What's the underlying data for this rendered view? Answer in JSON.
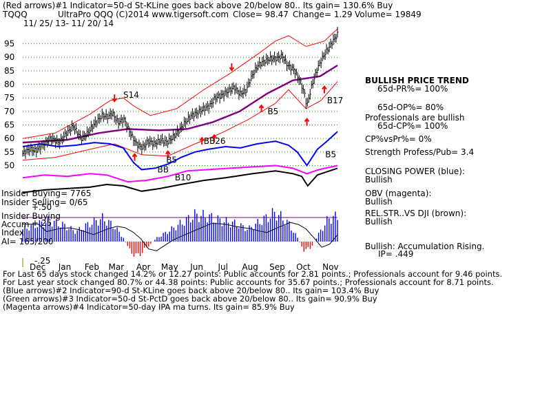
{
  "header": {
    "line1": "(Red arrows)#1 Indicator=50-d St-KLine goes back above 20/below 80.. Its gain= 130.6% Buy",
    "symbol": "TQQQ",
    "title": "UltraPro QQQ  (C)2014 www.tigersoft.com",
    "close_label": "Close=  98.47",
    "change_label": "Change= 1.29",
    "volume_label": "Volume= 19849",
    "date_range": "11/ 25/ 13- 11/ 20/ 14"
  },
  "right_panel": {
    "trend_title": "BULLISH PRICE TREND",
    "pr": "65d-PR%= 100%",
    "op": "65d-OP%= 80%",
    "pros": "Professionals are bullish",
    "cp": "65d-CP%= 100%",
    "cpvspr": "CP%vsPr%=  0%",
    "strength": "Strength Profess/Pub= 3.4",
    "closing_power_title": "CLOSING POWER (blue):",
    "closing_power_value": "Bullish",
    "obv_title": "OBV (magenta):",
    "obv_value": "Bullish",
    "relstr_title": "REL.STR..VS DJI (brown):",
    "relstr_value": "Bullish",
    "accum_title": "Bullish: Accumulation Rising.",
    "ip": "IP=  .449"
  },
  "left_labels": {
    "insider_buying": "Insider Buying= 7765",
    "insider_selling": "Insider Selling= 0/65",
    "insider_buying2": "Insider Buying",
    "accum": "Accum",
    "index": "Index",
    "ai": "AI= 165/200",
    "p50": "+.50",
    "p25": "+.25",
    "m25": "-.25"
  },
  "annotations": [
    {
      "text": "S14",
      "x": "2014-03-20",
      "y": 75
    },
    {
      "text": "B17",
      "x": "2014-11-08",
      "y": 73
    },
    {
      "text": "B5",
      "x": "2014-09-01",
      "y": 69
    },
    {
      "text": "BB26",
      "x": "2014-06-20",
      "y": 58
    },
    {
      "text": "B5",
      "x": "2014-11-06",
      "y": 53
    },
    {
      "text": "B5",
      "x": "2014-05-08",
      "y": 51
    },
    {
      "text": "BB",
      "x": "2014-04-28",
      "y": 47.5
    },
    {
      "text": "B10",
      "x": "2014-05-18",
      "y": 44.5
    }
  ],
  "footer": {
    "line1": "For Last 65 days stock changed  14.2% or  12.27 points:  Public accounts for  2.81 points.;  Professionals account for  9.46 points.",
    "line2": "For Last year stock changed  80.7% or  44.38 points:  Public accounts for  35.67 points.;  Professionals account for  8.71 points.",
    "line3": "(Blue arrows)#2 Indicator=90-d St-KLine goes back above 20/below 80.. Its gain= 103.4% Buy",
    "line4": "(Green arrows)#3 Indicator=50-d St-PctD goes back above 20/below 80.. Its gain= 90.9% Buy",
    "line5": "(Magenta arrows)#4 Indicator=50-day IPA ma turns. Its gain= 85.9% Buy"
  },
  "colors": {
    "price": "#000000",
    "bands": "#ff0000",
    "ma": "#800080",
    "closing_power": "#0000ff",
    "obv": "#ff00ff",
    "relstr": "#000000",
    "accum_pos": "#0000ff",
    "accum_neg": "#ff0000",
    "grid": "#00aa00",
    "arrow_red": "#ff0000"
  },
  "chart_data": {
    "type": "line",
    "title": "UltraPro QQQ",
    "y_ticks": [
      50,
      55,
      60,
      65,
      70,
      75,
      80,
      85,
      90,
      95
    ],
    "ylim": [
      43,
      101
    ],
    "xlim": [
      "2013-11-25",
      "2014-11-20"
    ],
    "month_labels": [
      {
        "label": "Dec",
        "date": "2013-12-01"
      },
      {
        "label": "Jan",
        "date": "2014-01-01"
      },
      {
        "label": "Feb",
        "date": "2014-02-01"
      },
      {
        "label": "Mar",
        "date": "2014-03-01"
      },
      {
        "label": "Apr",
        "date": "2014-04-01"
      },
      {
        "label": "May",
        "date": "2014-05-01"
      },
      {
        "label": "Jun",
        "date": "2014-06-01"
      },
      {
        "label": "Jul",
        "date": "2014-07-01"
      },
      {
        "label": "Aug",
        "date": "2014-08-01"
      },
      {
        "label": "Sep",
        "date": "2014-09-01"
      },
      {
        "label": "Oct",
        "date": "2014-10-01"
      },
      {
        "label": "Nov",
        "date": "2014-11-01"
      }
    ],
    "price": [
      [
        "2013-11-25",
        54.5
      ],
      [
        "2013-12-03",
        56
      ],
      [
        "2013-12-10",
        55.5
      ],
      [
        "2013-12-18",
        57.5
      ],
      [
        "2013-12-27",
        60
      ],
      [
        "2014-01-06",
        58.5
      ],
      [
        "2014-01-14",
        62
      ],
      [
        "2014-01-22",
        64.5
      ],
      [
        "2014-01-31",
        60
      ],
      [
        "2014-02-06",
        61.5
      ],
      [
        "2014-02-14",
        65
      ],
      [
        "2014-02-24",
        68.5
      ],
      [
        "2014-03-03",
        68
      ],
      [
        "2014-03-07",
        69.5
      ],
      [
        "2014-03-14",
        66
      ],
      [
        "2014-03-21",
        67
      ],
      [
        "2014-03-28",
        62
      ],
      [
        "2014-04-04",
        58
      ],
      [
        "2014-04-11",
        56.5
      ],
      [
        "2014-04-18",
        59
      ],
      [
        "2014-04-25",
        58
      ],
      [
        "2014-05-02",
        59.5
      ],
      [
        "2014-05-09",
        58.5
      ],
      [
        "2014-05-16",
        60.5
      ],
      [
        "2014-05-23",
        63
      ],
      [
        "2014-05-30",
        66
      ],
      [
        "2014-06-06",
        68.5
      ],
      [
        "2014-06-13",
        69.5
      ],
      [
        "2014-06-20",
        71
      ],
      [
        "2014-06-27",
        72
      ],
      [
        "2014-07-03",
        75
      ],
      [
        "2014-07-11",
        76
      ],
      [
        "2014-07-18",
        77.5
      ],
      [
        "2014-07-25",
        79
      ],
      [
        "2014-07-31",
        76.5
      ],
      [
        "2014-08-07",
        77.5
      ],
      [
        "2014-08-14",
        83
      ],
      [
        "2014-08-21",
        87
      ],
      [
        "2014-08-28",
        88.5
      ],
      [
        "2014-09-04",
        89.5
      ],
      [
        "2014-09-11",
        89.5
      ],
      [
        "2014-09-18",
        90.5
      ],
      [
        "2014-09-24",
        87
      ],
      [
        "2014-10-01",
        85.5
      ],
      [
        "2014-10-07",
        82
      ],
      [
        "2014-10-13",
        77
      ],
      [
        "2014-10-16",
        72
      ],
      [
        "2014-10-22",
        80
      ],
      [
        "2014-10-29",
        86.5
      ],
      [
        "2014-11-04",
        90.5
      ],
      [
        "2014-11-10",
        93.5
      ],
      [
        "2014-11-15",
        96
      ],
      [
        "2014-11-20",
        98.5
      ]
    ],
    "upper_band": [
      [
        "2013-11-25",
        60
      ],
      [
        "2014-01-01",
        62
      ],
      [
        "2014-02-10",
        69
      ],
      [
        "2014-03-05",
        74
      ],
      [
        "2014-03-20",
        75
      ],
      [
        "2014-04-01",
        72
      ],
      [
        "2014-04-20",
        68.5
      ],
      [
        "2014-05-20",
        71
      ],
      [
        "2014-06-20",
        78
      ],
      [
        "2014-07-20",
        84
      ],
      [
        "2014-08-20",
        91
      ],
      [
        "2014-09-10",
        96
      ],
      [
        "2014-09-25",
        98
      ],
      [
        "2014-10-15",
        94
      ],
      [
        "2014-11-05",
        96
      ],
      [
        "2014-11-20",
        100.5
      ]
    ],
    "lower_band": [
      [
        "2013-11-25",
        52
      ],
      [
        "2014-01-01",
        53
      ],
      [
        "2014-02-10",
        56
      ],
      [
        "2014-03-10",
        58
      ],
      [
        "2014-04-10",
        54
      ],
      [
        "2014-05-10",
        53.5
      ],
      [
        "2014-06-10",
        58
      ],
      [
        "2014-07-10",
        62
      ],
      [
        "2014-08-10",
        67
      ],
      [
        "2014-09-10",
        73
      ],
      [
        "2014-09-25",
        78
      ],
      [
        "2014-10-15",
        71
      ],
      [
        "2014-11-01",
        74
      ],
      [
        "2014-11-20",
        81
      ]
    ],
    "ma": [
      [
        "2013-11-25",
        58.5
      ],
      [
        "2014-01-15",
        59.5
      ],
      [
        "2014-02-20",
        62
      ],
      [
        "2014-03-25",
        63.5
      ],
      [
        "2014-04-30",
        63
      ],
      [
        "2014-06-01",
        63.5
      ],
      [
        "2014-06-30",
        66
      ],
      [
        "2014-07-31",
        70
      ],
      [
        "2014-08-31",
        76.5
      ],
      [
        "2014-09-30",
        81.5
      ],
      [
        "2014-10-31",
        83
      ],
      [
        "2014-11-20",
        87
      ]
    ],
    "closing_power": [
      [
        "2013-11-25",
        57
      ],
      [
        "2013-12-15",
        58
      ],
      [
        "2014-01-05",
        57
      ],
      [
        "2014-01-25",
        57.5
      ],
      [
        "2014-02-15",
        58.5
      ],
      [
        "2014-03-05",
        58
      ],
      [
        "2014-03-20",
        56.5
      ],
      [
        "2014-04-01",
        51
      ],
      [
        "2014-04-10",
        48.5
      ],
      [
        "2014-04-25",
        49
      ],
      [
        "2014-05-10",
        50.5
      ],
      [
        "2014-05-25",
        53
      ],
      [
        "2014-06-10",
        55
      ],
      [
        "2014-06-25",
        56
      ],
      [
        "2014-07-15",
        57
      ],
      [
        "2014-08-01",
        56.5
      ],
      [
        "2014-08-20",
        58
      ],
      [
        "2014-09-10",
        59
      ],
      [
        "2014-09-25",
        57.5
      ],
      [
        "2014-10-05",
        55
      ],
      [
        "2014-10-16",
        50
      ],
      [
        "2014-10-28",
        56
      ],
      [
        "2014-11-08",
        59
      ],
      [
        "2014-11-20",
        62.5
      ]
    ],
    "obv": [
      [
        "2013-11-25",
        45.5
      ],
      [
        "2013-12-20",
        46.5
      ],
      [
        "2014-01-15",
        46
      ],
      [
        "2014-02-10",
        47
      ],
      [
        "2014-03-01",
        46.5
      ],
      [
        "2014-03-25",
        44
      ],
      [
        "2014-04-15",
        44.5
      ],
      [
        "2014-05-10",
        46
      ],
      [
        "2014-06-01",
        48
      ],
      [
        "2014-06-25",
        48.5
      ],
      [
        "2014-07-20",
        49
      ],
      [
        "2014-08-15",
        49.5
      ],
      [
        "2014-09-10",
        50
      ],
      [
        "2014-09-30",
        49
      ],
      [
        "2014-10-16",
        47
      ],
      [
        "2014-10-30",
        48.5
      ],
      [
        "2014-11-20",
        50
      ]
    ],
    "relstr": [
      [
        "2013-11-25",
        40
      ],
      [
        "2013-12-20",
        41
      ],
      [
        "2014-01-15",
        41.5
      ],
      [
        "2014-02-10",
        42
      ],
      [
        "2014-03-01",
        43
      ],
      [
        "2014-03-20",
        42.5
      ],
      [
        "2014-04-10",
        40.5
      ],
      [
        "2014-05-01",
        41.5
      ],
      [
        "2014-05-25",
        43
      ],
      [
        "2014-06-20",
        44.5
      ],
      [
        "2014-07-15",
        45.5
      ],
      [
        "2014-08-15",
        47
      ],
      [
        "2014-09-10",
        48
      ],
      [
        "2014-09-30",
        47
      ],
      [
        "2014-10-10",
        46
      ],
      [
        "2014-10-17",
        42.5
      ],
      [
        "2014-10-28",
        46.5
      ],
      [
        "2014-11-20",
        49
      ]
    ],
    "accumulation": [
      [
        "2013-11-25",
        0.15
      ],
      [
        "2013-12-10",
        0.2
      ],
      [
        "2013-12-25",
        0.25
      ],
      [
        "2014-01-10",
        0.2
      ],
      [
        "2014-01-25",
        0.12
      ],
      [
        "2014-02-10",
        0.22
      ],
      [
        "2014-02-25",
        0.28
      ],
      [
        "2014-03-10",
        0.18
      ],
      [
        "2014-03-20",
        0.05
      ],
      [
        "2014-03-28",
        -0.12
      ],
      [
        "2014-04-05",
        -0.18
      ],
      [
        "2014-04-15",
        -0.08
      ],
      [
        "2014-04-28",
        0.05
      ],
      [
        "2014-05-10",
        0.12
      ],
      [
        "2014-05-25",
        0.22
      ],
      [
        "2014-06-10",
        0.32
      ],
      [
        "2014-06-25",
        0.3
      ],
      [
        "2014-07-10",
        0.25
      ],
      [
        "2014-07-25",
        0.22
      ],
      [
        "2014-08-10",
        0.15
      ],
      [
        "2014-08-25",
        0.25
      ],
      [
        "2014-09-10",
        0.35
      ],
      [
        "2014-09-25",
        0.22
      ],
      [
        "2014-10-05",
        0.05
      ],
      [
        "2014-10-12",
        -0.1
      ],
      [
        "2014-10-20",
        -0.08
      ],
      [
        "2014-10-30",
        0.1
      ],
      [
        "2014-11-10",
        0.28
      ],
      [
        "2014-11-20",
        0.3
      ]
    ],
    "red_arrows": [
      {
        "x": "2014-03-10",
        "y": 74,
        "dir": "down"
      },
      {
        "x": "2014-04-02",
        "y": 54,
        "dir": "up"
      },
      {
        "x": "2014-07-22",
        "y": 85.5,
        "dir": "down"
      },
      {
        "x": "2014-06-18",
        "y": 60,
        "dir": "up"
      },
      {
        "x": "2014-07-02",
        "y": 61,
        "dir": "up"
      },
      {
        "x": "2014-08-25",
        "y": 72,
        "dir": "up"
      },
      {
        "x": "2014-10-16",
        "y": 67,
        "dir": "up"
      },
      {
        "x": "2014-11-05",
        "y": 79,
        "dir": "up"
      },
      {
        "x": "2014-05-10",
        "y": 55,
        "dir": "up"
      }
    ]
  }
}
